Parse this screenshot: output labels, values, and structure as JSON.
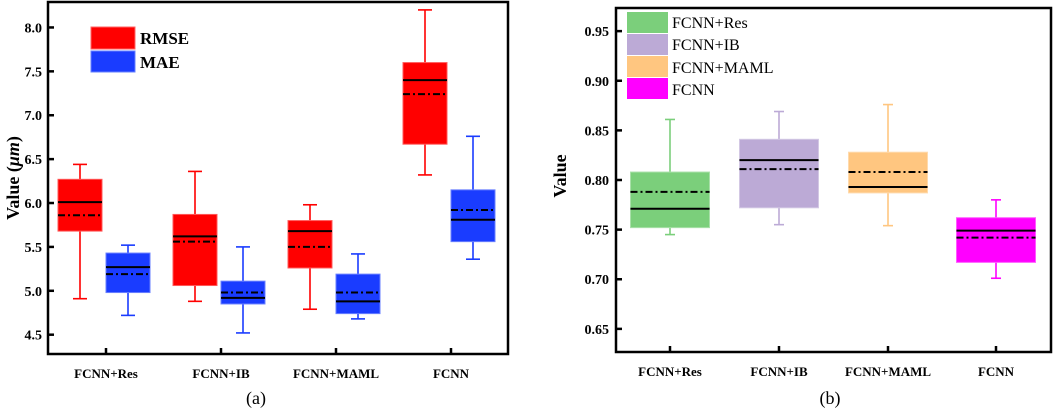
{
  "chart_data": [
    {
      "type": "box",
      "panel_label": "(a)",
      "title": "",
      "xlabel": "",
      "ylabel": "Value (μm)",
      "ylabel_parts": {
        "prefix": "Value (",
        "unit": "μm",
        "suffix": ")"
      },
      "ylim": [
        4.28,
        8.29
      ],
      "yticks": [
        "4.5",
        "5.0",
        "5.5",
        "6.0",
        "6.5",
        "7.0",
        "7.5",
        "8.0"
      ],
      "categories": [
        "FCNN+Res",
        "FCNN+IB",
        "FCNN+MAML",
        "FCNN"
      ],
      "legend": {
        "position": "top-left",
        "entries": [
          {
            "label": "RMSE",
            "color": "#ff0000"
          },
          {
            "label": "MAE",
            "color": "#1a3cff"
          }
        ]
      },
      "line_styles": {
        "median": "solid",
        "mean": "dash-dot"
      },
      "series": [
        {
          "name": "RMSE",
          "color": "#ff0000",
          "boxes": [
            {
              "whisker_low": 4.91,
              "q1": 5.68,
              "median": 6.01,
              "mean": 5.86,
              "q3": 6.27,
              "whisker_high": 6.44
            },
            {
              "whisker_low": 4.88,
              "q1": 5.06,
              "median": 5.62,
              "mean": 5.56,
              "q3": 5.87,
              "whisker_high": 6.36
            },
            {
              "whisker_low": 4.79,
              "q1": 5.26,
              "median": 5.68,
              "mean": 5.5,
              "q3": 5.8,
              "whisker_high": 5.98
            },
            {
              "whisker_low": 6.32,
              "q1": 6.67,
              "median": 7.4,
              "mean": 7.24,
              "q3": 7.6,
              "whisker_high": 8.2
            }
          ]
        },
        {
          "name": "MAE",
          "color": "#1a3cff",
          "boxes": [
            {
              "whisker_low": 4.72,
              "q1": 4.98,
              "median": 5.27,
              "mean": 5.19,
              "q3": 5.43,
              "whisker_high": 5.52
            },
            {
              "whisker_low": 4.52,
              "q1": 4.85,
              "median": 4.92,
              "mean": 4.98,
              "q3": 5.11,
              "whisker_high": 5.5
            },
            {
              "whisker_low": 4.68,
              "q1": 4.74,
              "median": 4.88,
              "mean": 4.98,
              "q3": 5.19,
              "whisker_high": 5.42
            },
            {
              "whisker_low": 5.36,
              "q1": 5.56,
              "median": 5.81,
              "mean": 5.92,
              "q3": 6.15,
              "whisker_high": 6.76
            }
          ]
        }
      ]
    },
    {
      "type": "box",
      "panel_label": "(b)",
      "title": "",
      "xlabel": "",
      "ylabel": "Value",
      "ylim": [
        0.6267,
        0.9733
      ],
      "yticks": [
        "0.65",
        "0.70",
        "0.75",
        "0.80",
        "0.85",
        "0.90",
        "0.95"
      ],
      "categories": [
        "FCNN+Res",
        "FCNN+IB",
        "FCNN+MAML",
        "FCNN"
      ],
      "legend": {
        "position": "top-left",
        "entries": [
          {
            "label": "FCNN+Res",
            "color": "#7bcf7b"
          },
          {
            "label": "FCNN+IB",
            "color": "#bcaad6"
          },
          {
            "label": "FCNN+MAML",
            "color": "#ffc680"
          },
          {
            "label": "FCNN",
            "color": "#ff00ff"
          }
        ]
      },
      "line_styles": {
        "median": "solid",
        "mean": "dash-dot"
      },
      "series": [
        {
          "name": "Value",
          "colors": [
            "#7bcf7b",
            "#bcaad6",
            "#ffc680",
            "#ff00ff"
          ],
          "boxes": [
            {
              "whisker_low": 0.745,
              "q1": 0.752,
              "median": 0.771,
              "mean": 0.788,
              "q3": 0.808,
              "whisker_high": 0.861
            },
            {
              "whisker_low": 0.755,
              "q1": 0.772,
              "median": 0.82,
              "mean": 0.811,
              "q3": 0.841,
              "whisker_high": 0.869
            },
            {
              "whisker_low": 0.754,
              "q1": 0.787,
              "median": 0.793,
              "mean": 0.808,
              "q3": 0.828,
              "whisker_high": 0.876
            },
            {
              "whisker_low": 0.701,
              "q1": 0.717,
              "median": 0.749,
              "mean": 0.742,
              "q3": 0.762,
              "whisker_high": 0.78
            }
          ]
        }
      ]
    }
  ]
}
